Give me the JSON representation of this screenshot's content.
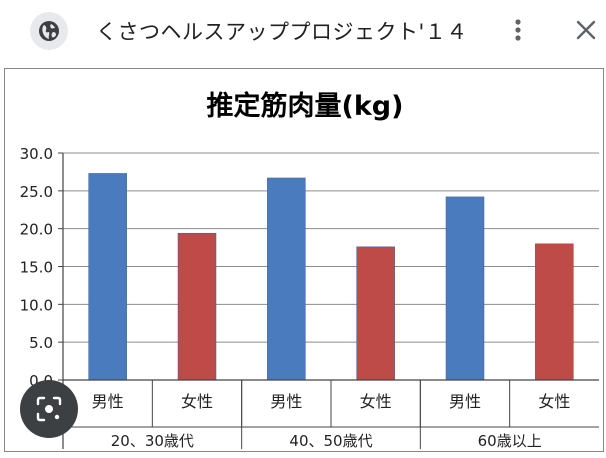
{
  "header": {
    "title": "くさつヘルスアッププロジェクト'１４",
    "site_icon": "globe-icon",
    "menu_icon": "more-vert-icon",
    "close_icon": "close-icon"
  },
  "lens": {
    "icon": "image-search-icon"
  },
  "chart_data": {
    "type": "bar",
    "title": "推定筋肉量(kg)",
    "xlabel": "",
    "ylabel": "",
    "ylim": [
      0,
      30
    ],
    "yticks": [
      "0.0",
      "5.0",
      "10.0",
      "15.0",
      "20.0",
      "25.0",
      "30.0"
    ],
    "grid": true,
    "groups": [
      "20、30歳代",
      "40、50歳代",
      "60歳以上"
    ],
    "categories": [
      "男性",
      "女性",
      "男性",
      "女性",
      "男性",
      "女性"
    ],
    "values": [
      27.3,
      19.4,
      26.7,
      17.6,
      24.2,
      18.0
    ],
    "colors": [
      "#4a7bbe",
      "#be4b48",
      "#4a7bbe",
      "#be4b48",
      "#4a7bbe",
      "#be4b48"
    ]
  }
}
